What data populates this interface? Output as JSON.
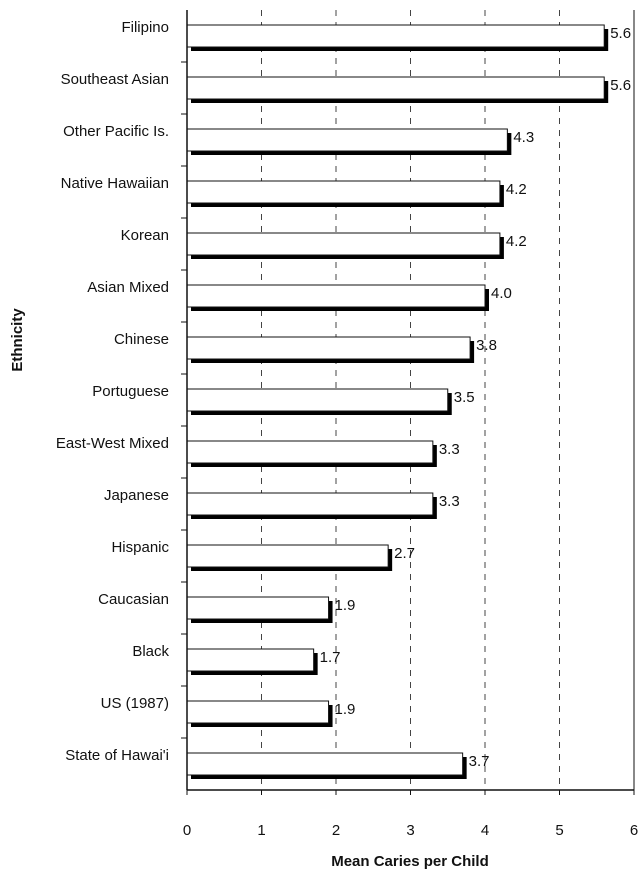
{
  "chart_data": {
    "type": "bar",
    "orientation": "horizontal",
    "categories": [
      "Filipino",
      "Southeast Asian",
      "Other Pacific Is.",
      "Native Hawaiian",
      "Korean",
      "Asian Mixed",
      "Chinese",
      "Portuguese",
      "East-West Mixed",
      "Japanese",
      "Hispanic",
      "Caucasian",
      "Black",
      "US (1987)",
      "State of Hawai'i"
    ],
    "values": [
      5.6,
      5.6,
      4.3,
      4.2,
      4.2,
      4.0,
      3.8,
      3.5,
      3.3,
      3.3,
      2.7,
      1.9,
      1.7,
      1.9,
      3.7
    ],
    "value_labels": [
      "5.6",
      "5.6",
      "4.3",
      "4.2",
      "4.2",
      "4.0",
      "3.8",
      "3.5",
      "3.3",
      "3.3",
      "2.7",
      "1.9",
      "1.7",
      "1.9",
      "3.7"
    ],
    "title": "",
    "xlabel": "Mean Caries per Child",
    "ylabel": "Ethnicity",
    "xlim": [
      0,
      6
    ],
    "xticks": [
      0,
      1,
      2,
      3,
      4,
      5,
      6
    ],
    "grid": "vertical dashed",
    "legend": "none",
    "colors": {
      "bar_fill": "#ffffff",
      "bar_edge": "#111111",
      "bar_shadow": "#000000",
      "grid": "#444444"
    }
  }
}
